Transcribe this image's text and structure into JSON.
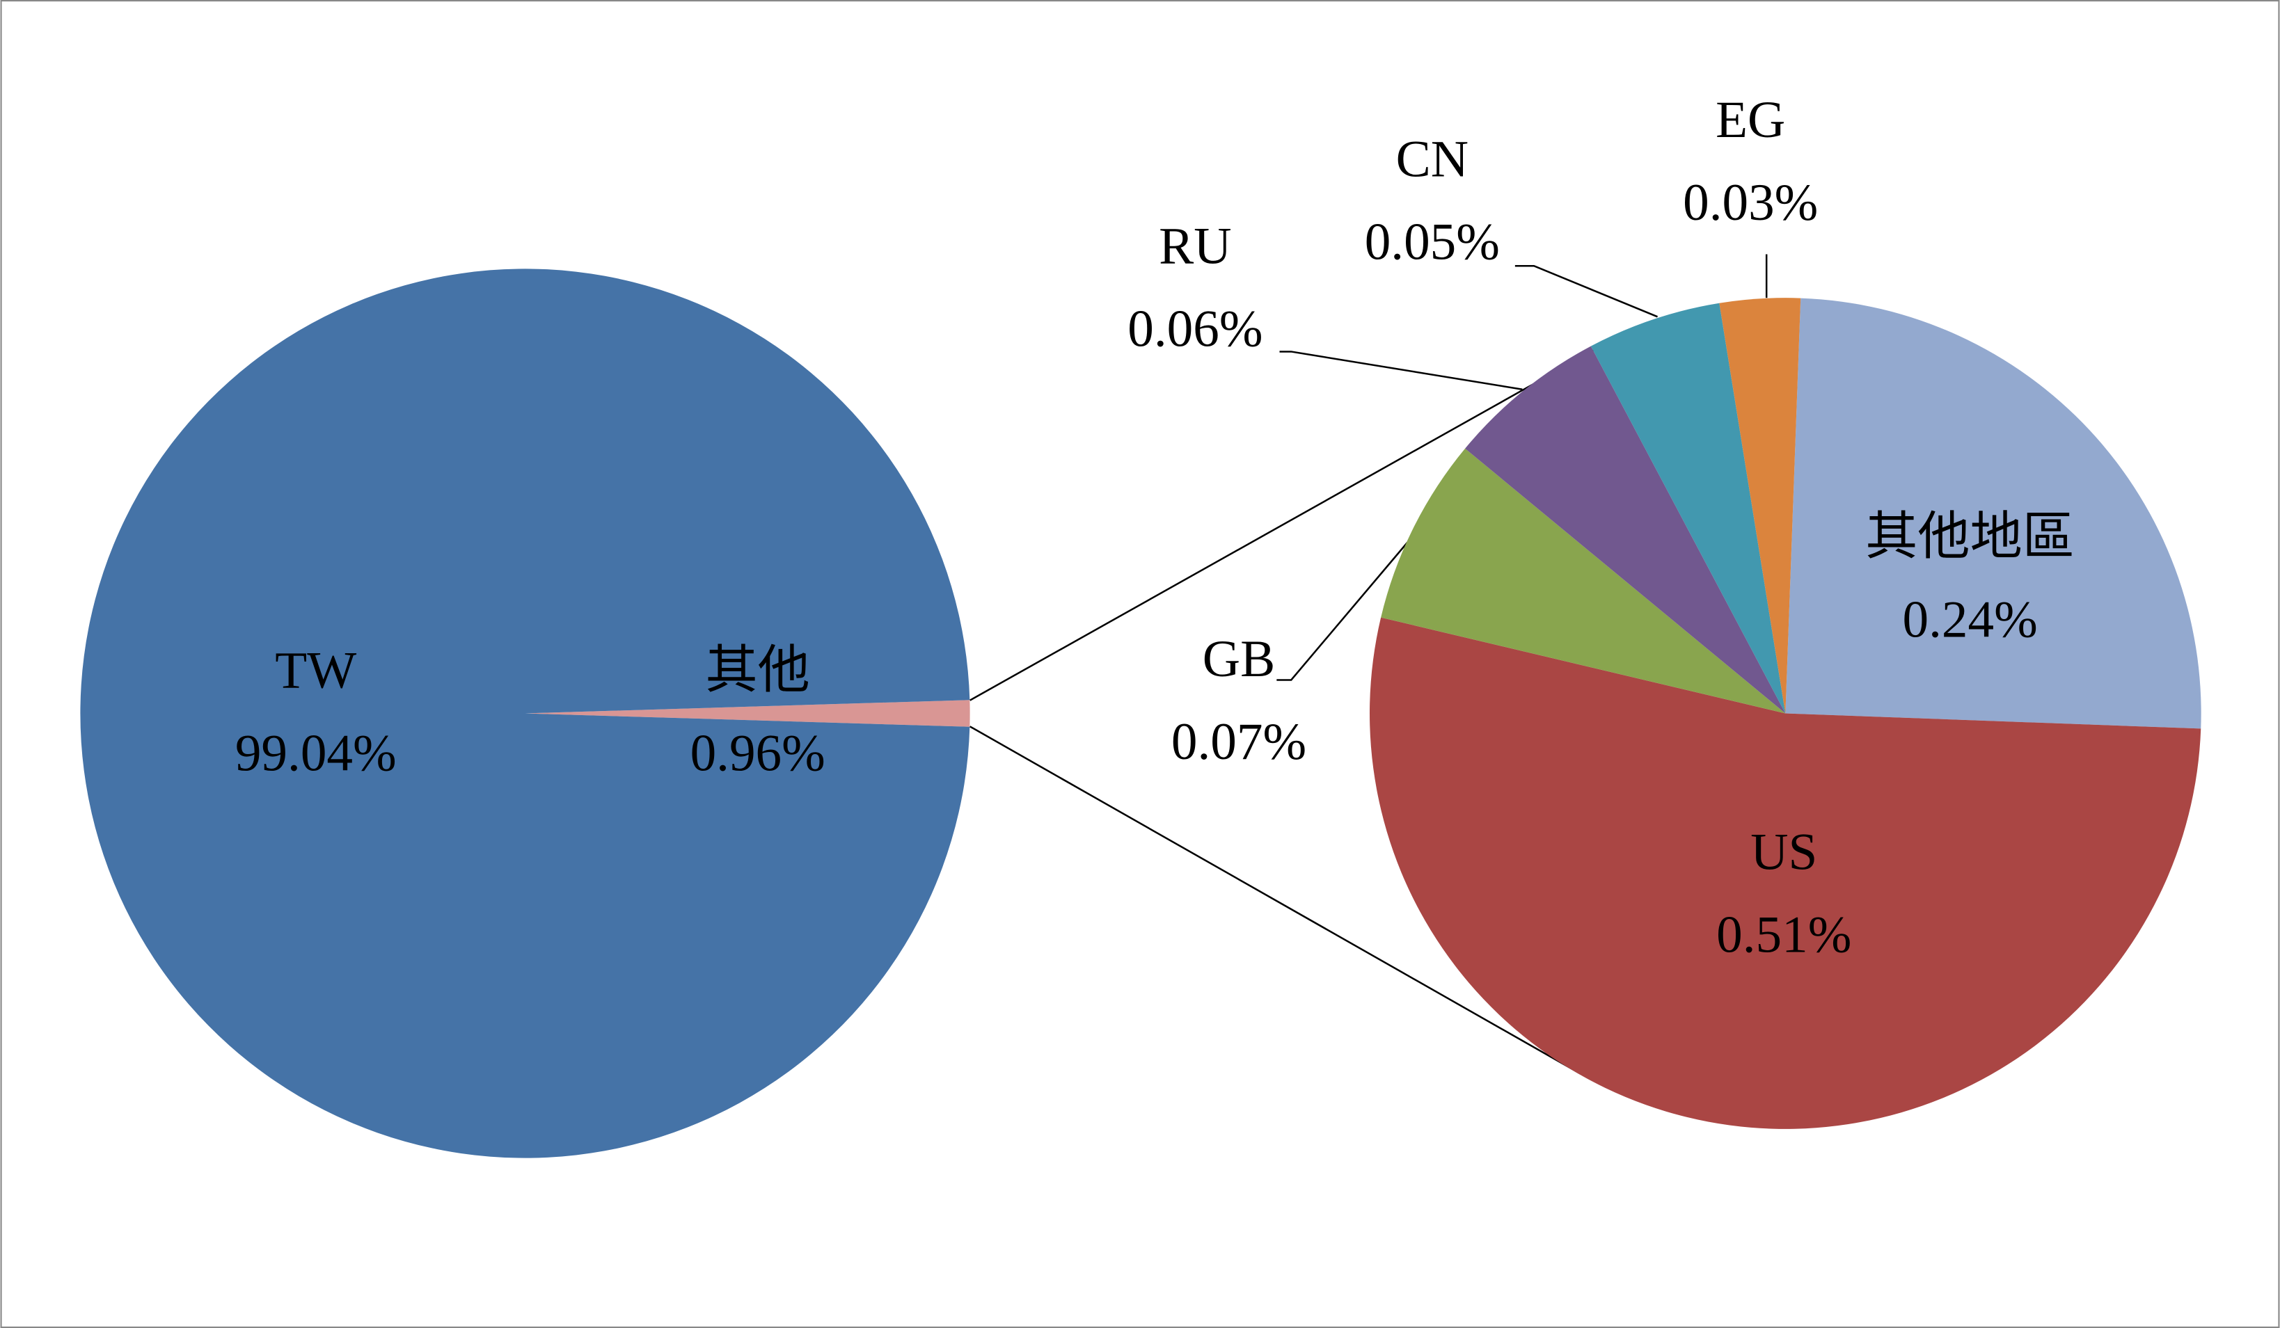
{
  "chart_data": [
    {
      "type": "pie",
      "categories": [
        "TW",
        "其他"
      ],
      "values": [
        99.04,
        0.96
      ],
      "value_labels": [
        "99.04%",
        "0.96%"
      ],
      "colors": [
        "#4573a7",
        "#d99694"
      ]
    },
    {
      "type": "pie",
      "categories": [
        "其他地區",
        "US",
        "GB",
        "RU",
        "CN",
        "EG"
      ],
      "values": [
        0.24,
        0.51,
        0.07,
        0.06,
        0.05,
        0.03
      ],
      "value_labels": [
        "0.24%",
        "0.51%",
        "0.07%",
        "0.06%",
        "0.05%",
        "0.03%"
      ],
      "colors": [
        "#93a9cf",
        "#aa4644",
        "#89a54e",
        "#71588f",
        "#4298af",
        "#db843d"
      ]
    }
  ]
}
